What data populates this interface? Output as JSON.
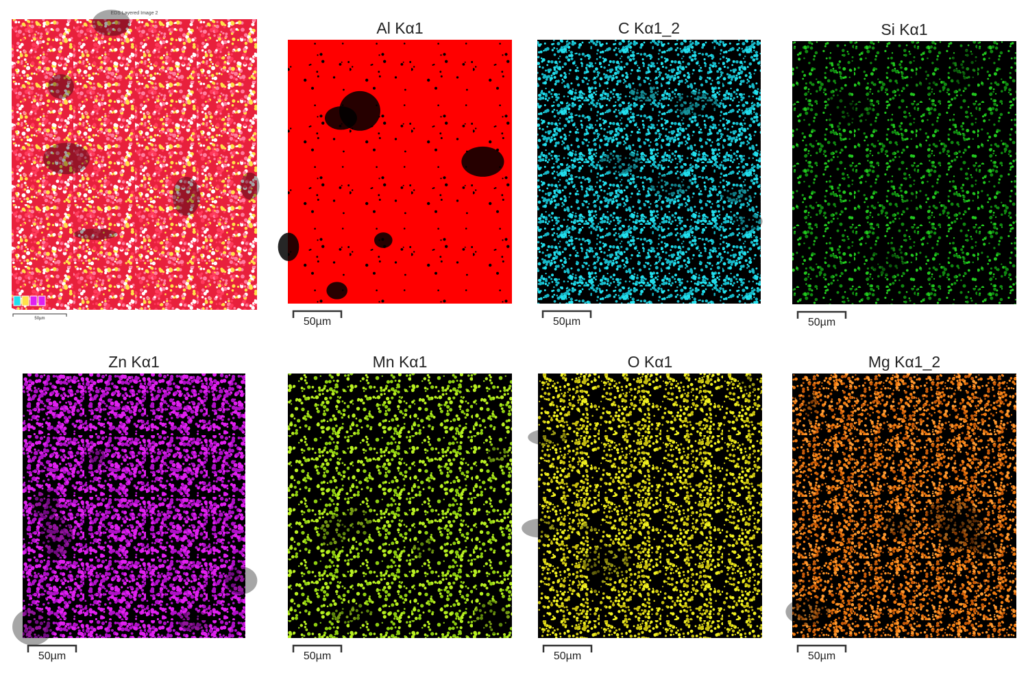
{
  "panels": [
    {
      "title": "EDS Layered Image 2",
      "scale_label": "50µm"
    },
    {
      "title": "Al Kα1",
      "scale_label": "50µm"
    },
    {
      "title": "C Kα1_2",
      "scale_label": "50µm"
    },
    {
      "title": "Si Kα1",
      "scale_label": "50µm"
    },
    {
      "title": "Zn Kα1",
      "scale_label": "50µm"
    },
    {
      "title": "Mn Kα1",
      "scale_label": "50µm"
    },
    {
      "title": "O Kα1",
      "scale_label": "50µm"
    },
    {
      "title": "Mg Kα1_2",
      "scale_label": "50µm"
    }
  ]
}
